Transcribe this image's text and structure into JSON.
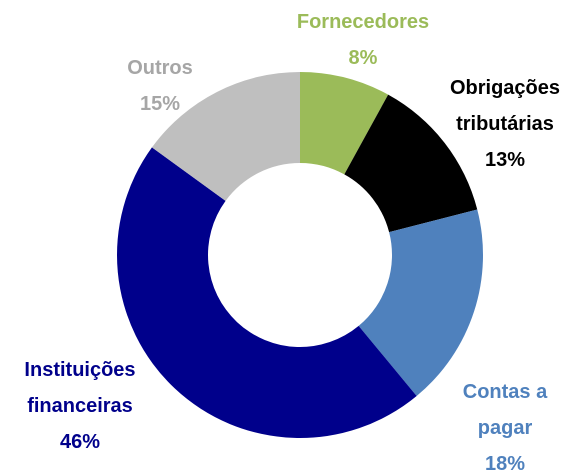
{
  "chart_data": {
    "type": "donut",
    "categories": [
      "Fornecedores",
      "Obrigações tributárias",
      "Contas a pagar",
      "Instituições financeiras",
      "Outros"
    ],
    "values": [
      8,
      13,
      18,
      46,
      15
    ],
    "value_labels": [
      "8%",
      "13%",
      "18%",
      "46%",
      "15%"
    ],
    "colors": [
      "#9bbb59",
      "#000000",
      "#4f81bd",
      "#00008b",
      "#bfbfbf"
    ],
    "label_colors": [
      "#9bbb59",
      "#000000",
      "#4f81bd",
      "#00008b",
      "#a6a6a6"
    ]
  }
}
